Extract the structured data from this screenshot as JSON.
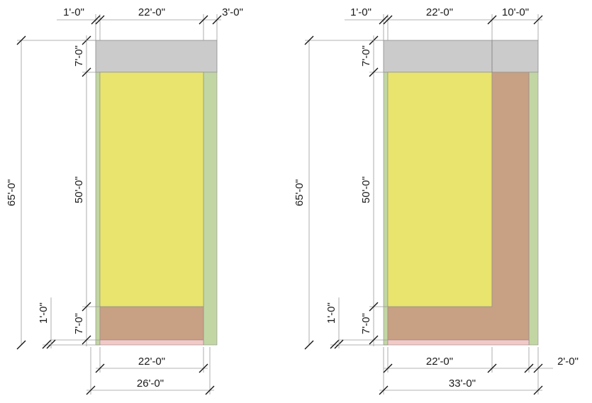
{
  "colors": {
    "landscape": "#c2d6a3",
    "building": "#e8e46e",
    "parking": "#c8a084",
    "entry": "#f3c9c6",
    "street": "#cbcbcb",
    "dimension_line": "#9a9a9a",
    "tick": "#111111"
  },
  "plan_a": {
    "top_dims": [
      "1'-0\"",
      "22'-0\"",
      "3'-0\""
    ],
    "left_dims": [
      "7'-0\"",
      "50'-0\"",
      "7'-0\"",
      "1'-0\""
    ],
    "overall_depth": "65'-0\"",
    "bottom_dims": [
      "22'-0\"",
      "26'-0\""
    ]
  },
  "plan_b": {
    "top_dims": [
      "1'-0\"",
      "22'-0\"",
      "10'-0\""
    ],
    "left_dims": [
      "7'-0\"",
      "50'-0\"",
      "7'-0\"",
      "1'-0\""
    ],
    "overall_depth": "65'-0\"",
    "bottom_dims": [
      "22'-0\"",
      "2'-0\"",
      "33'-0\""
    ]
  }
}
